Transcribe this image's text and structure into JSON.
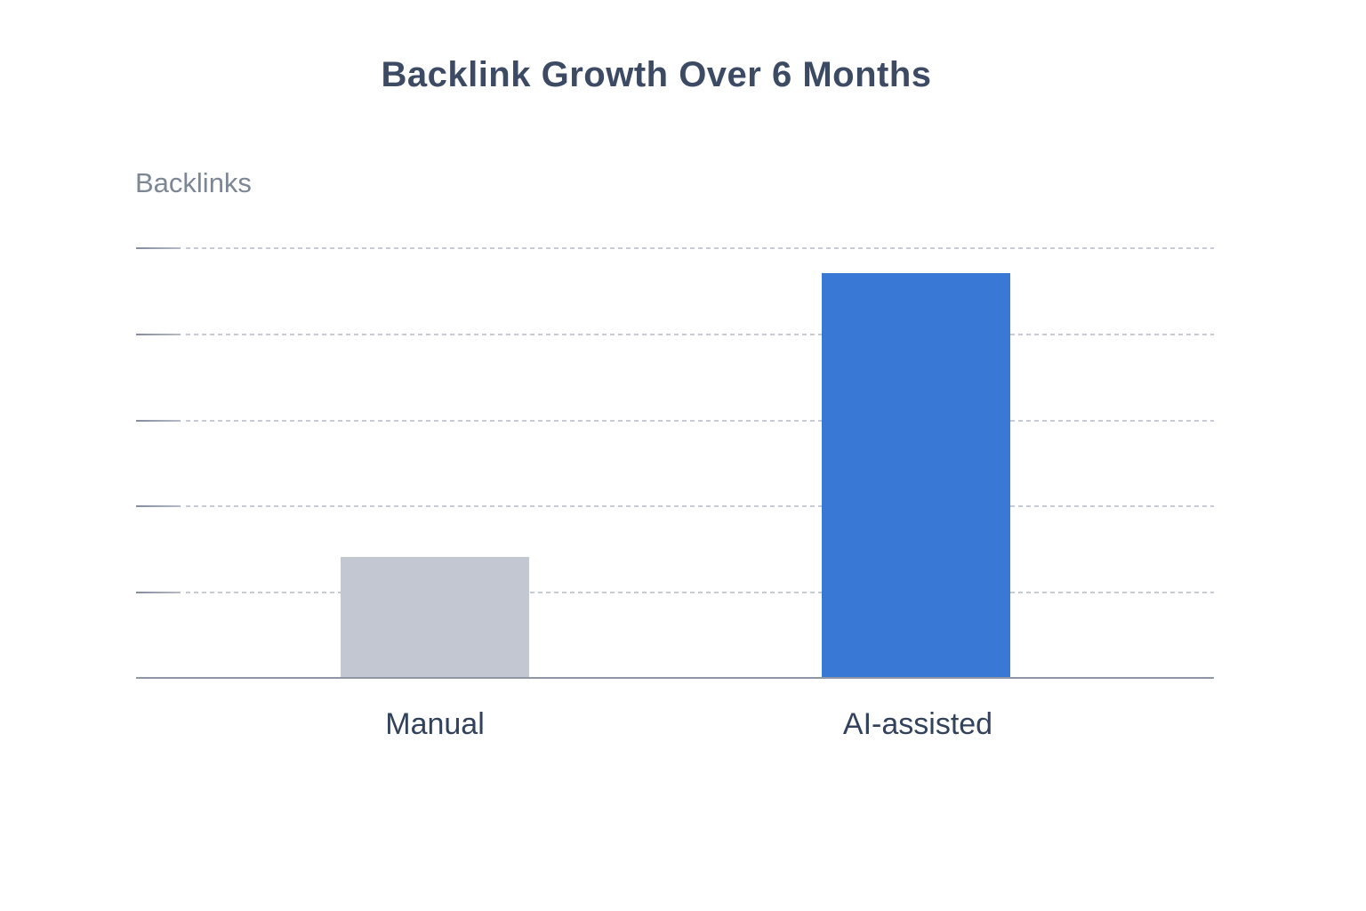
{
  "header": {
    "title": "Backlink Growth Over 6 Months"
  },
  "axes": {
    "y_label": "Backlinks"
  },
  "chart_data": {
    "type": "bar",
    "title": "Backlink Growth Over 6 Months",
    "categories": [
      "Manual",
      "AI-assisted"
    ],
    "values": [
      140,
      470
    ],
    "xlabel": "",
    "ylabel": "Backlinks",
    "ylim": [
      0,
      500
    ],
    "y_tick_labels_shown": false,
    "gridlines_y": [
      100,
      200,
      300,
      400,
      500
    ],
    "grid_style": "dotted-horizontal",
    "legend": "none",
    "bar_colors": [
      "#c3c7d2",
      "#3a78d6"
    ]
  },
  "colors": {
    "background": "#ffffff",
    "title_text": "#3c4a64",
    "category_text": "#32425c",
    "y_label_text": "#7d8695",
    "axis_line": "#8f96a4",
    "gridline_dots": "#c7cbd5",
    "y_tick": "#848b9c",
    "manual_bar": "#c3c7d2",
    "ai_bar": "#3a78d6"
  }
}
